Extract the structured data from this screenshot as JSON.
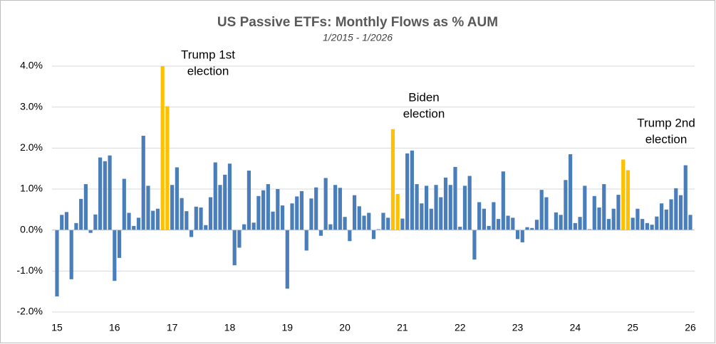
{
  "chart_data": {
    "type": "bar",
    "title": "US Passive ETFs: Monthly Flows as % AUM",
    "subtitle": "1/2015 - 1/2026",
    "color": "#4a7ebb",
    "highlight_color": "#ffc000",
    "highlight": [
      22,
      23,
      70,
      71,
      118,
      119
    ],
    "values": [
      -1.62,
      0.37,
      0.44,
      -1.2,
      0.17,
      0.76,
      1.12,
      -0.07,
      0.38,
      1.77,
      1.68,
      1.82,
      -1.24,
      -0.68,
      1.25,
      0.42,
      0.1,
      0.3,
      2.3,
      1.08,
      0.47,
      0.52,
      4.0,
      3.02,
      1.1,
      1.53,
      0.78,
      0.46,
      -0.17,
      0.57,
      0.55,
      0.12,
      0.8,
      1.65,
      1.1,
      1.35,
      1.62,
      -0.86,
      -0.43,
      0.14,
      1.45,
      0.18,
      0.83,
      0.97,
      1.12,
      0.45,
      1.0,
      0.6,
      -1.43,
      0.65,
      0.82,
      0.95,
      -0.5,
      0.77,
      1.04,
      -0.14,
      1.27,
      0.14,
      1.1,
      1.03,
      0.32,
      -0.27,
      0.85,
      0.58,
      0.35,
      0.42,
      -0.22,
      0.02,
      0.42,
      0.3,
      2.46,
      0.88,
      0.28,
      1.87,
      1.94,
      1.12,
      0.65,
      1.08,
      0.52,
      1.1,
      0.8,
      1.28,
      1.1,
      1.54,
      0.08,
      1.08,
      1.32,
      -0.72,
      0.68,
      0.52,
      0.1,
      0.68,
      0.27,
      1.43,
      0.35,
      0.3,
      -0.22,
      -0.3,
      0.07,
      0.05,
      0.25,
      0.98,
      0.8,
      0.02,
      0.43,
      0.37,
      1.22,
      1.85,
      0.17,
      0.32,
      1.08,
      0.02,
      0.83,
      0.55,
      1.12,
      0.27,
      0.52,
      0.86,
      1.72,
      1.46,
      0.3,
      0.52,
      0.27,
      0.17,
      0.13,
      0.33,
      0.65,
      0.5,
      0.75,
      1.02,
      0.85,
      1.58,
      0.37
    ],
    "xlim": [
      15,
      26
    ],
    "xticks": [
      15,
      16,
      17,
      18,
      19,
      20,
      21,
      22,
      23,
      24,
      25,
      26
    ],
    "ylim": [
      -2,
      4
    ],
    "yticks": [
      {
        "value": -2,
        "label": "-2.0%"
      },
      {
        "value": -1,
        "label": "-1.0%"
      },
      {
        "value": 0,
        "label": "0.0%"
      },
      {
        "value": 1,
        "label": "1.0%"
      },
      {
        "value": 2,
        "label": "2.0%"
      },
      {
        "value": 3,
        "label": "3.0%"
      },
      {
        "value": 4,
        "label": "4.0%"
      }
    ],
    "grid": true,
    "annotations": [
      {
        "lines": [
          "Trump 1st",
          "election"
        ]
      },
      {
        "lines": [
          "Biden",
          "election"
        ]
      },
      {
        "lines": [
          "Trump 2nd",
          "election"
        ]
      }
    ]
  }
}
